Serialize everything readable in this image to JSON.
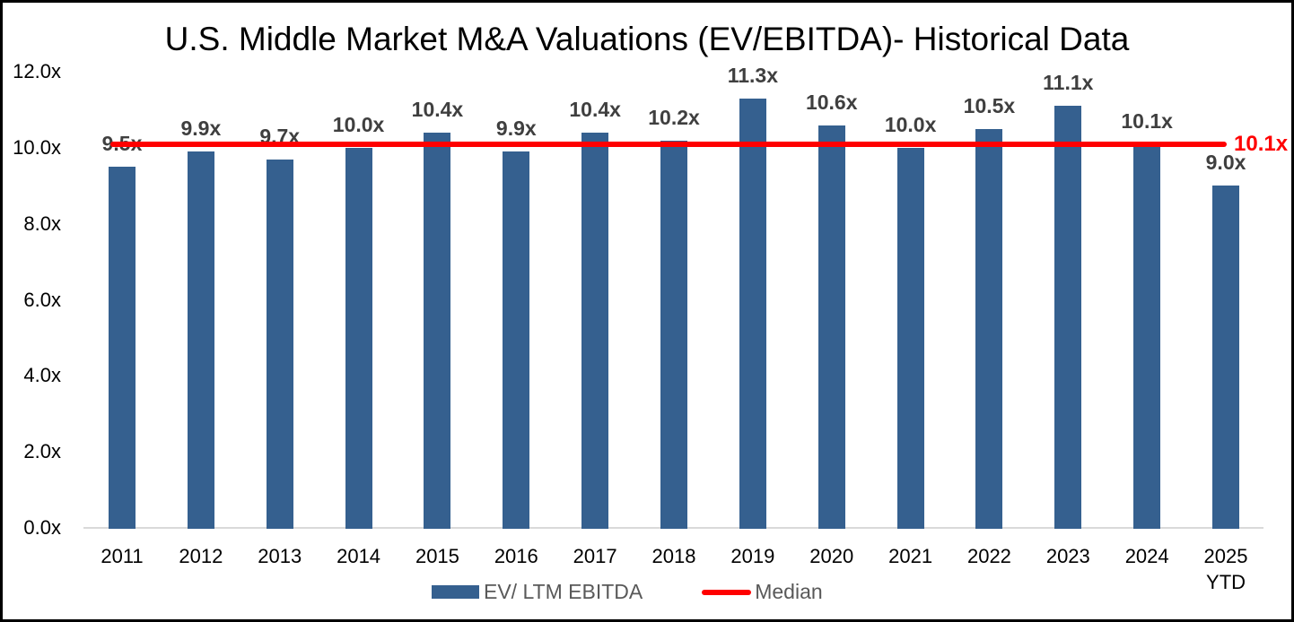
{
  "title": "U.S. Middle Market M&A Valuations (EV/EBITDA)- Historical Data",
  "legend": {
    "series_label": "EV/ LTM EBITDA",
    "median_label": "Median"
  },
  "chart_data": {
    "type": "bar",
    "title": "U.S. Middle Market M&A Valuations (EV/EBITDA)- Historical Data",
    "categories": [
      "2011",
      "2012",
      "2013",
      "2014",
      "2015",
      "2016",
      "2017",
      "2018",
      "2019",
      "2020",
      "2021",
      "2022",
      "2023",
      "2024",
      "2025 YTD"
    ],
    "values": [
      9.5,
      9.9,
      9.7,
      10.0,
      10.4,
      9.9,
      10.4,
      10.2,
      11.3,
      10.6,
      10.0,
      10.5,
      11.1,
      10.1,
      9.0
    ],
    "bar_labels": [
      "9.5x",
      "9.9x",
      "9.7x",
      "10.0x",
      "10.4x",
      "9.9x",
      "10.4x",
      "10.2x",
      "11.3x",
      "10.6x",
      "10.0x",
      "10.5x",
      "11.1x",
      "10.1x",
      "9.0x"
    ],
    "series_name": "EV/ LTM EBITDA",
    "median": {
      "value": 10.1,
      "label": "10.1x",
      "name": "Median"
    },
    "y_ticks": [
      {
        "value": 0.0,
        "label": "0.0x"
      },
      {
        "value": 2.0,
        "label": "2.0x"
      },
      {
        "value": 4.0,
        "label": "4.0x"
      },
      {
        "value": 6.0,
        "label": "6.0x"
      },
      {
        "value": 8.0,
        "label": "8.0x"
      },
      {
        "value": 10.0,
        "label": "10.0x"
      },
      {
        "value": 12.0,
        "label": "12.0x"
      }
    ],
    "ylim": [
      0.0,
      12.0
    ],
    "grid": false,
    "legend_position": "bottom",
    "colors": {
      "bar": "#35608f",
      "median_line": "#ff0000",
      "bar_label": "#3f3f3f",
      "axis_label": "#000000",
      "legend_text": "#595959",
      "axis_line": "#d9d9d9"
    }
  }
}
